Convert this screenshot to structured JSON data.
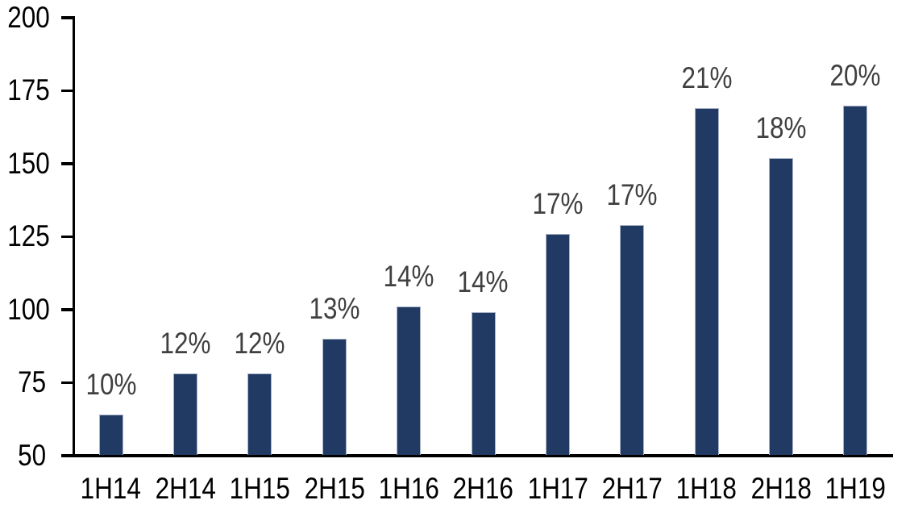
{
  "chart_data": {
    "type": "bar",
    "title": "",
    "xlabel": "",
    "ylabel": "",
    "categories": [
      "1H14",
      "2H14",
      "1H15",
      "2H15",
      "1H16",
      "2H16",
      "1H17",
      "2H17",
      "1H18",
      "2H18",
      "1H19"
    ],
    "values": [
      64,
      78,
      78,
      90,
      101,
      99,
      126,
      129,
      169,
      152,
      170
    ],
    "data_labels": [
      "10%",
      "12%",
      "12%",
      "13%",
      "14%",
      "14%",
      "17%",
      "17%",
      "21%",
      "18%",
      "20%"
    ],
    "ylim": [
      50,
      200
    ],
    "yticks": [
      50,
      75,
      100,
      125,
      150,
      175,
      200
    ],
    "grid": false,
    "legend": "none",
    "colors": {
      "bar_fill": "#203A63",
      "bar_border": "#A9B3C7",
      "data_label": "#404040",
      "axis": "#000000",
      "tick_label": "#000000",
      "background": "#FFFFFF"
    }
  }
}
